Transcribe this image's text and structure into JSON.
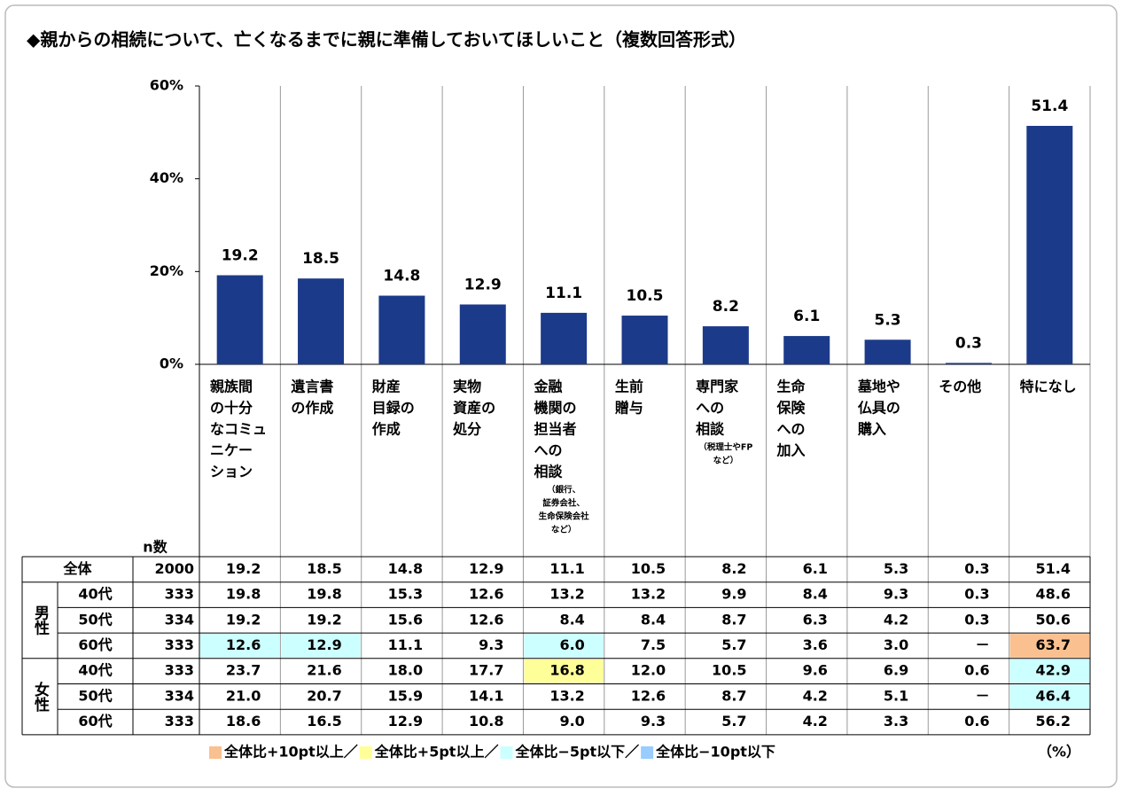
{
  "title": "◆親からの相続について、亡くなるまでに親に準備しておいてほしいこと（複数回答形式）",
  "chart_data": {
    "type": "bar",
    "categories": [
      [
        "親族間",
        "の十分",
        "なコミュ",
        "ニケー",
        "ション"
      ],
      [
        "遺言書",
        "の作成"
      ],
      [
        "財産",
        "目録の",
        "作成"
      ],
      [
        "実物",
        "資産の",
        "処分"
      ],
      [
        "金融",
        "機関の",
        "担当者",
        "への",
        "相談"
      ],
      [
        "生前",
        "贈与"
      ],
      [
        "専門家",
        "への",
        "相談"
      ],
      [
        "生命",
        "保険",
        "への",
        "加入"
      ],
      [
        "墓地や",
        "仏具の",
        "購入"
      ],
      [
        "その他"
      ],
      [
        "特になし"
      ]
    ],
    "category_notes": [
      null,
      null,
      null,
      null,
      [
        "（銀行、",
        "証券会社、",
        "生命保険会社",
        "など）"
      ],
      null,
      [
        "（税理士やFP",
        "など）"
      ],
      null,
      null,
      null,
      null
    ],
    "values": [
      19.2,
      18.5,
      14.8,
      12.9,
      11.1,
      10.5,
      8.2,
      6.1,
      5.3,
      0.3,
      51.4
    ],
    "color": "#1c3a8a",
    "ylim": [
      0,
      60
    ],
    "yticks": [
      {
        "value": 0,
        "label": "0%"
      },
      {
        "value": 20,
        "label": "20%"
      },
      {
        "value": 40,
        "label": "40%"
      },
      {
        "value": 60,
        "label": "60%"
      }
    ],
    "grid": false
  },
  "table": {
    "n_header": "n数",
    "total": {
      "label": "全体",
      "n": 2000,
      "cells": [
        "19.2",
        "18.5",
        "14.8",
        "12.9",
        "11.1",
        "10.5",
        "8.2",
        "6.1",
        "5.3",
        "0.3",
        "51.4"
      ],
      "cell_colors": [
        null,
        null,
        null,
        null,
        null,
        null,
        null,
        null,
        null,
        null,
        null
      ]
    },
    "groups": [
      {
        "label": "男性",
        "rows": [
          {
            "label": "40代",
            "n": 333,
            "cells": [
              "19.8",
              "19.8",
              "15.3",
              "12.6",
              "13.2",
              "13.2",
              "9.9",
              "8.4",
              "9.3",
              "0.3",
              "48.6"
            ],
            "cell_colors": [
              null,
              null,
              null,
              null,
              null,
              null,
              null,
              null,
              null,
              null,
              null
            ]
          },
          {
            "label": "50代",
            "n": 334,
            "cells": [
              "19.2",
              "19.2",
              "15.6",
              "12.6",
              "8.4",
              "8.4",
              "8.7",
              "6.3",
              "4.2",
              "0.3",
              "50.6"
            ],
            "cell_colors": [
              null,
              null,
              null,
              null,
              null,
              null,
              null,
              null,
              null,
              null,
              null
            ]
          },
          {
            "label": "60代",
            "n": 333,
            "cells": [
              "12.6",
              "12.9",
              "11.1",
              "9.3",
              "6.0",
              "7.5",
              "5.7",
              "3.6",
              "3.0",
              "－",
              "63.7"
            ],
            "cell_colors": [
              "#ccffff",
              "#ccffff",
              null,
              null,
              "#ccffff",
              null,
              null,
              null,
              null,
              null,
              "#fac090"
            ]
          }
        ]
      },
      {
        "label": "女性",
        "rows": [
          {
            "label": "40代",
            "n": 333,
            "cells": [
              "23.7",
              "21.6",
              "18.0",
              "17.7",
              "16.8",
              "12.0",
              "10.5",
              "9.6",
              "6.9",
              "0.6",
              "42.9"
            ],
            "cell_colors": [
              null,
              null,
              null,
              null,
              "#ffff99",
              null,
              null,
              null,
              null,
              null,
              "#ccffff"
            ]
          },
          {
            "label": "50代",
            "n": 334,
            "cells": [
              "21.0",
              "20.7",
              "15.9",
              "14.1",
              "13.2",
              "12.6",
              "8.7",
              "4.2",
              "5.1",
              "－",
              "46.4"
            ],
            "cell_colors": [
              null,
              null,
              null,
              null,
              null,
              null,
              null,
              null,
              null,
              null,
              "#ccffff"
            ]
          },
          {
            "label": "60代",
            "n": 333,
            "cells": [
              "18.6",
              "16.5",
              "12.9",
              "10.8",
              "9.0",
              "9.3",
              "5.7",
              "4.2",
              "3.3",
              "0.6",
              "56.2"
            ],
            "cell_colors": [
              null,
              null,
              null,
              null,
              null,
              null,
              null,
              null,
              null,
              null,
              null
            ]
          }
        ]
      }
    ]
  },
  "legend": {
    "separator": "／",
    "items": [
      {
        "label": "全体比+10pt以上",
        "color": "#fac090"
      },
      {
        "label": "全体比+5pt以上",
        "color": "#ffff99"
      },
      {
        "label": "全体比−5pt以下",
        "color": "#ccffff"
      },
      {
        "label": "全体比−10pt以下",
        "color": "#99ccff"
      }
    ]
  },
  "unit": "（%）"
}
